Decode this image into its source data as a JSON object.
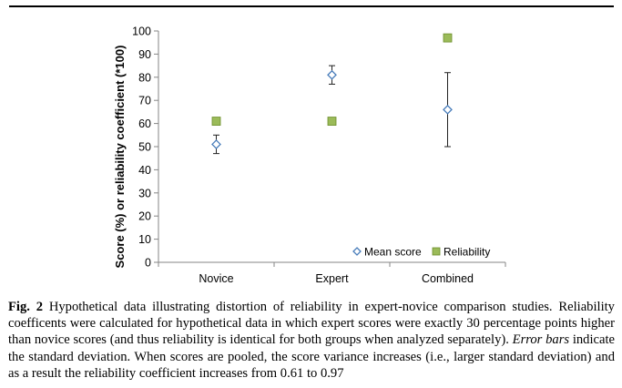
{
  "chart_data": {
    "type": "scatter",
    "categories": [
      "Novice",
      "Expert",
      "Combined"
    ],
    "ylabel": "Score (%) or reliability coefficient (*100)",
    "ylim": [
      0,
      100
    ],
    "yticks": [
      0,
      10,
      20,
      30,
      40,
      50,
      60,
      70,
      80,
      90,
      100
    ],
    "grid": false,
    "legend_position": "bottom-right",
    "series": [
      {
        "name": "Mean score",
        "marker": "diamond-open",
        "color": "#4a7ebb",
        "values": [
          51,
          81,
          66
        ],
        "error_low": [
          47,
          77,
          50
        ],
        "error_high": [
          55,
          85,
          82
        ]
      },
      {
        "name": "Reliability",
        "marker": "square",
        "color": "#9bbb59",
        "edge_color": "#6b8e2a",
        "values": [
          61,
          61,
          97
        ]
      }
    ]
  },
  "caption": {
    "label": "Fig. 2",
    "part1": "Hypothetical data illustrating distortion of reliability in expert-novice comparison studies. Reliability coefficents were calculated for hypothetical data in which expert scores were exactly 30 percentage points higher than novice scores (and thus reliability is identical for both groups when analyzed separately).",
    "emphasis": "Error bars",
    "part2": "indicate the standard deviation. When scores are pooled, the score variance increases (i.e., larger standard deviation) and as a result the reliability coefficient increases from 0.61 to 0.97"
  }
}
